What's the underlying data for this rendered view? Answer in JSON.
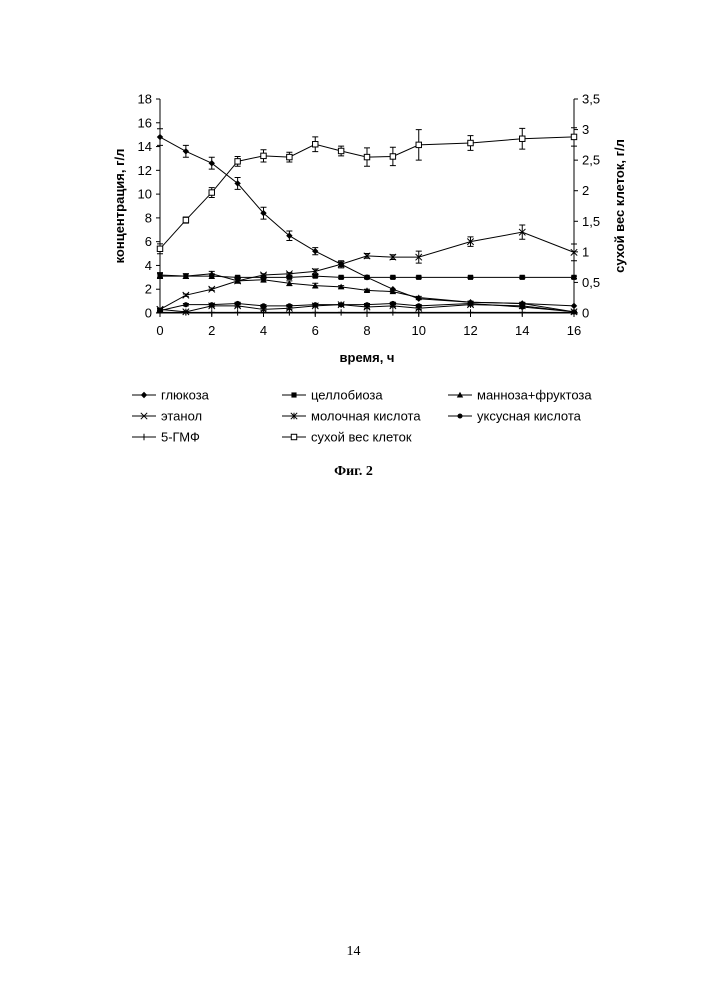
{
  "figure": {
    "caption": "Фиг. 2",
    "page_number": "14"
  },
  "chart_data": {
    "type": "line",
    "xlabel": "время, ч",
    "ylabel_left": "концентрация, г/л",
    "ylabel_right": "сухой вес клеток, г/л",
    "xlim": [
      0,
      16
    ],
    "ylim_left": [
      0,
      18
    ],
    "ylim_right": [
      0,
      3.5
    ],
    "xticks": [
      "0",
      "2",
      "4",
      "6",
      "8",
      "10",
      "12",
      "14",
      "16"
    ],
    "yticks_left": [
      "0",
      "2",
      "4",
      "6",
      "8",
      "10",
      "12",
      "14",
      "16",
      "18"
    ],
    "yticks_right": [
      "0",
      "0,5",
      "1",
      "1,5",
      "2",
      "2,5",
      "3",
      "3,5"
    ],
    "grid": false,
    "legend_position": "bottom",
    "series": [
      {
        "name": "глюкоза",
        "axis": "left",
        "marker": "diamond",
        "x": [
          0,
          1,
          2,
          3,
          4,
          5,
          6,
          7,
          8,
          9,
          10,
          12,
          14,
          16
        ],
        "y": [
          14.8,
          13.6,
          12.6,
          10.9,
          8.4,
          6.5,
          5.2,
          4.1,
          3.0,
          2.0,
          1.2,
          0.9,
          0.8,
          0.6
        ],
        "err": [
          0.7,
          0.5,
          0.5,
          0.5,
          0.5,
          0.4,
          0.3,
          0.3,
          0,
          0,
          0,
          0,
          0,
          0
        ]
      },
      {
        "name": "целлобиоза",
        "axis": "left",
        "marker": "square",
        "x": [
          0,
          1,
          2,
          3,
          4,
          5,
          6,
          7,
          8,
          9,
          10,
          12,
          14,
          16
        ],
        "y": [
          3.2,
          3.1,
          3.1,
          3.0,
          3.0,
          3.0,
          3.1,
          3.0,
          3.0,
          3.0,
          3.0,
          3.0,
          3.0,
          3.0
        ],
        "err": [
          0.2,
          0.2,
          0.2,
          0.1,
          0.1,
          0.1,
          0.1,
          0.1,
          0.1,
          0.1,
          0.1,
          0.1,
          0.1,
          0.1
        ]
      },
      {
        "name": "манноза+фруктоза",
        "axis": "left",
        "marker": "triangle",
        "x": [
          0,
          1,
          2,
          3,
          4,
          5,
          6,
          7,
          8,
          9,
          10,
          12,
          14,
          16
        ],
        "y": [
          3.1,
          3.1,
          3.3,
          2.7,
          2.8,
          2.5,
          2.3,
          2.2,
          1.9,
          1.8,
          1.3,
          0.9,
          0.8,
          0.1
        ],
        "err": [
          0.2,
          0.2,
          0.2,
          0.2,
          0.2,
          0.2,
          0.2,
          0.1,
          0.1,
          0.1,
          0.1,
          0.1,
          0.1,
          0.05
        ]
      },
      {
        "name": "этанол",
        "axis": "left",
        "marker": "x",
        "x": [
          0,
          1,
          2,
          3,
          4,
          5,
          6,
          7,
          8,
          9,
          10,
          12,
          14,
          16
        ],
        "y": [
          0.3,
          1.5,
          2.0,
          2.7,
          3.2,
          3.3,
          3.5,
          4.1,
          4.8,
          4.7,
          4.7,
          6.0,
          6.8,
          5.1
        ],
        "err": [
          0.1,
          0.1,
          0.1,
          0.1,
          0.1,
          0.1,
          0.2,
          0.2,
          0.2,
          0.2,
          0.5,
          0.4,
          0.6,
          0.7
        ]
      },
      {
        "name": "молочная кислота",
        "axis": "left",
        "marker": "asterisk",
        "x": [
          0,
          1,
          2,
          3,
          4,
          5,
          6,
          7,
          8,
          9,
          10,
          12,
          14,
          16
        ],
        "y": [
          0.3,
          0.1,
          0.6,
          0.6,
          0.3,
          0.4,
          0.6,
          0.7,
          0.5,
          0.6,
          0.4,
          0.7,
          0.6,
          0.1
        ],
        "err": [
          0.05,
          0.05,
          0.1,
          0.1,
          0.1,
          0.1,
          0.1,
          0.1,
          0.1,
          0.1,
          0.1,
          0.1,
          0.1,
          0.05
        ]
      },
      {
        "name": "уксусная кислота",
        "axis": "left",
        "marker": "circle",
        "x": [
          0,
          1,
          2,
          3,
          4,
          5,
          6,
          7,
          8,
          9,
          10,
          12,
          14,
          16
        ],
        "y": [
          0.2,
          0.7,
          0.7,
          0.8,
          0.6,
          0.6,
          0.7,
          0.7,
          0.7,
          0.8,
          0.6,
          0.8,
          0.5,
          0.1
        ],
        "err": [
          0.05,
          0.1,
          0.1,
          0.1,
          0.1,
          0.1,
          0.1,
          0.1,
          0.1,
          0.1,
          0.1,
          0.1,
          0.1,
          0.05
        ]
      },
      {
        "name": "5-ГМФ",
        "axis": "left",
        "marker": "plus",
        "x": [
          0,
          1,
          2,
          3,
          4,
          5,
          6,
          7,
          8,
          9,
          10,
          12,
          14,
          16
        ],
        "y": [
          0.05,
          0.05,
          0.05,
          0.05,
          0.05,
          0.05,
          0.05,
          0.05,
          0.05,
          0.05,
          0.05,
          0.05,
          0.05,
          0.05
        ],
        "err": [
          0,
          0,
          0,
          0,
          0,
          0,
          0,
          0,
          0,
          0,
          0,
          0,
          0,
          0
        ]
      },
      {
        "name": "сухой вес клеток",
        "axis": "right",
        "marker": "open-square",
        "x": [
          0,
          1,
          2,
          3,
          4,
          5,
          6,
          7,
          8,
          9,
          10,
          12,
          14,
          16
        ],
        "y": [
          1.05,
          1.52,
          1.97,
          2.48,
          2.57,
          2.55,
          2.76,
          2.65,
          2.55,
          2.56,
          2.75,
          2.78,
          2.85,
          2.88
        ],
        "err": [
          0.08,
          0.05,
          0.08,
          0.08,
          0.1,
          0.08,
          0.12,
          0.08,
          0.15,
          0.15,
          0.25,
          0.12,
          0.17,
          0.15
        ]
      }
    ]
  }
}
